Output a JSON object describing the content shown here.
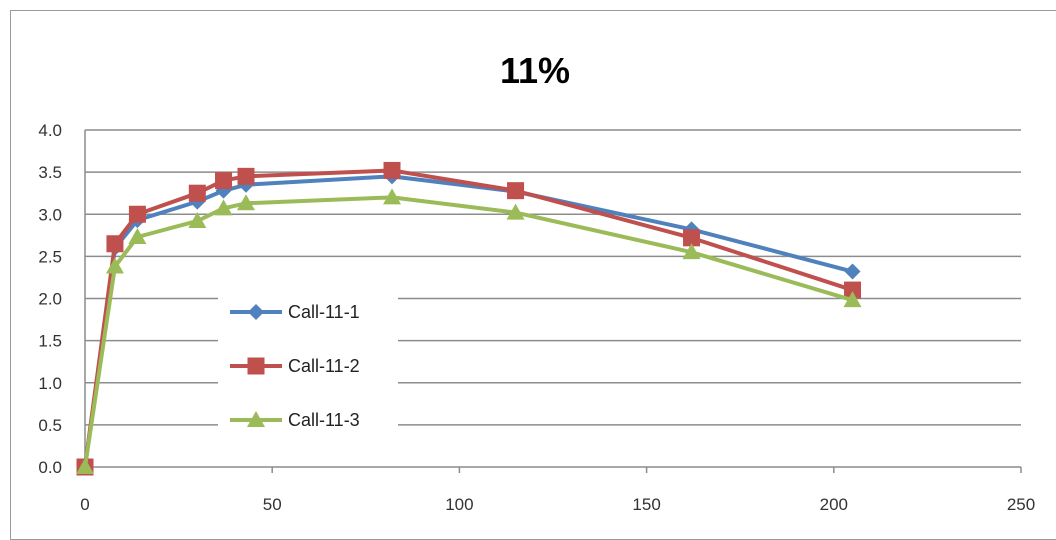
{
  "chart_data": {
    "type": "line",
    "title": "11%",
    "xlabel": "",
    "ylabel": "",
    "xlim": [
      0,
      250
    ],
    "ylim": [
      0.0,
      4.0
    ],
    "x_ticks": [
      "0",
      "50",
      "100",
      "150",
      "200",
      "250"
    ],
    "y_ticks": [
      "0.0",
      "0.5",
      "1.0",
      "1.5",
      "2.0",
      "2.5",
      "3.0",
      "3.5",
      "4.0"
    ],
    "grid": "horizontal",
    "legend_placement": "center-left",
    "series": [
      {
        "name": "Call-11-1",
        "color": "#4F81BD",
        "marker": "diamond",
        "points": [
          [
            0,
            0.0
          ],
          [
            8,
            2.6
          ],
          [
            14,
            2.93
          ],
          [
            30,
            3.15
          ],
          [
            37,
            3.28
          ],
          [
            43,
            3.35
          ],
          [
            82,
            3.45
          ],
          [
            115,
            3.27
          ],
          [
            162,
            2.82
          ],
          [
            205,
            2.32
          ]
        ]
      },
      {
        "name": "Call-11-2",
        "color": "#C0504D",
        "marker": "square",
        "points": [
          [
            0,
            0.0
          ],
          [
            8,
            2.65
          ],
          [
            14,
            3.0
          ],
          [
            30,
            3.25
          ],
          [
            37,
            3.4
          ],
          [
            43,
            3.45
          ],
          [
            82,
            3.52
          ],
          [
            115,
            3.28
          ],
          [
            162,
            2.72
          ],
          [
            205,
            2.1
          ]
        ]
      },
      {
        "name": "Call-11-3",
        "color": "#9BBB59",
        "marker": "triangle",
        "points": [
          [
            0,
            0.0
          ],
          [
            8,
            2.38
          ],
          [
            14,
            2.73
          ],
          [
            30,
            2.92
          ],
          [
            37,
            3.07
          ],
          [
            43,
            3.13
          ],
          [
            82,
            3.2
          ],
          [
            115,
            3.02
          ],
          [
            162,
            2.55
          ],
          [
            205,
            1.98
          ]
        ]
      }
    ]
  }
}
